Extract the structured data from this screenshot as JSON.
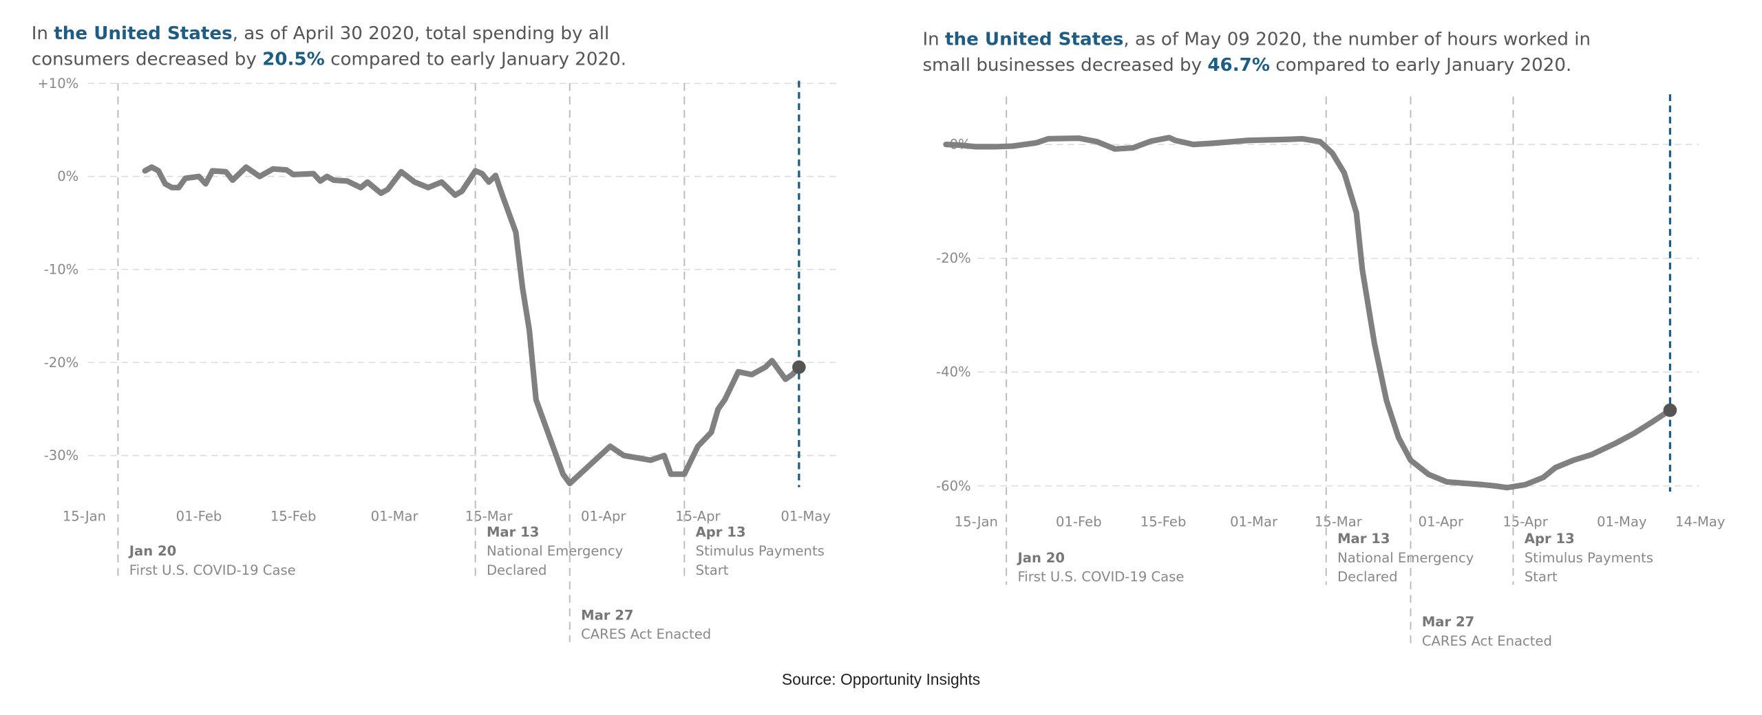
{
  "chart_data": [
    {
      "type": "line",
      "title": [
        {
          "text": "In "
        },
        {
          "text": "the United States",
          "highlight": true
        },
        {
          "text": ", as of April 30 2020, total spending by all consumers decreased by "
        },
        {
          "text": "20.5%",
          "highlight": true
        },
        {
          "text": " compared to early January 2020."
        }
      ],
      "x": [
        "24-Jan",
        "25-Jan",
        "26-Jan",
        "27-Jan",
        "28-Jan",
        "29-Jan",
        "30-Jan",
        "01-Feb",
        "02-Feb",
        "03-Feb",
        "05-Feb",
        "06-Feb",
        "08-Feb",
        "10-Feb",
        "12-Feb",
        "14-Feb",
        "15-Feb",
        "18-Feb",
        "19-Feb",
        "20-Feb",
        "21-Feb",
        "23-Feb",
        "25-Feb",
        "26-Feb",
        "28-Feb",
        "29-Feb",
        "02-Mar",
        "04-Mar",
        "06-Mar",
        "08-Mar",
        "10-Mar",
        "11-Mar",
        "13-Mar",
        "14-Mar",
        "15-Mar",
        "16-Mar",
        "17-Mar",
        "19-Mar",
        "20-Mar",
        "21-Mar",
        "22-Mar",
        "24-Mar",
        "26-Mar",
        "27-Mar",
        "30-Mar",
        "02-Apr",
        "04-Apr",
        "08-Apr",
        "10-Apr",
        "11-Apr",
        "13-Apr",
        "15-Apr",
        "17-Apr",
        "18-Apr",
        "19-Apr",
        "21-Apr",
        "23-Apr",
        "25-Apr",
        "26-Apr",
        "28-Apr",
        "29-Apr",
        "30-Apr"
      ],
      "series": [
        {
          "color": "#808080",
          "values": [
            0.6,
            1.0,
            0.6,
            -0.8,
            -1.2,
            -1.2,
            -0.2,
            0,
            -0.8,
            0.6,
            0.5,
            -0.4,
            1.0,
            0,
            0.8,
            0.7,
            0.2,
            0.3,
            -0.5,
            0,
            -0.4,
            -0.5,
            -1.2,
            -0.6,
            -1.8,
            -1.4,
            0.5,
            -0.6,
            -1.2,
            -0.6,
            -2.0,
            -1.6,
            0.6,
            0.3,
            -0.6,
            0.1,
            -2,
            -6,
            -12,
            -16.5,
            -24,
            -28,
            -32,
            -33,
            -31,
            -29,
            -30,
            -30.5,
            -30,
            -32,
            -32,
            -29,
            -27.5,
            -25,
            -24,
            -21,
            -21.3,
            -20.5,
            -19.8,
            -21.8,
            -21.3,
            -20.5
          ]
        }
      ],
      "xlim": [
        "13-Jan",
        "05-May"
      ],
      "xticks": [
        "15-Jan",
        "01-Feb",
        "15-Feb",
        "01-Mar",
        "15-Mar",
        "01-Apr",
        "15-Apr",
        "01-May"
      ],
      "ylim": [
        -34,
        11
      ],
      "yticks": [
        {
          "value": 10,
          "label": "+10%"
        },
        {
          "value": 0,
          "label": "0%"
        },
        {
          "value": -10,
          "label": "-10%"
        },
        {
          "value": -20,
          "label": "-20%"
        },
        {
          "value": -30,
          "label": "-30%"
        }
      ],
      "grid": true,
      "highlight_color": "#1d5c85",
      "annotations": [
        {
          "x": "20-Jan",
          "label": "Jan 20",
          "text": [
            "First U.S. COVID-19 Case"
          ]
        },
        {
          "x": "13-Mar",
          "label": "Mar 13",
          "text": [
            "National Emergency",
            "Declared"
          ]
        },
        {
          "x": "27-Mar",
          "label": "Mar 27",
          "text": [
            "CARES Act Enacted"
          ]
        },
        {
          "x": "13-Apr",
          "label": "Apr 13",
          "text": [
            "Stimulus Payments",
            "Start"
          ]
        }
      ]
    },
    {
      "type": "line",
      "title": [
        {
          "text": "In "
        },
        {
          "text": "the United States",
          "highlight": true
        },
        {
          "text": ", as of May 09 2020, the number of hours worked in small businesses decreased by "
        },
        {
          "text": "46.7%",
          "highlight": true
        },
        {
          "text": " compared to early January 2020."
        }
      ],
      "x": [
        "10-Jan",
        "12-Jan",
        "15-Jan",
        "18-Jan",
        "21-Jan",
        "25-Jan",
        "27-Jan",
        "01-Feb",
        "04-Feb",
        "07-Feb",
        "10-Feb",
        "13-Feb",
        "16-Feb",
        "17-Feb",
        "20-Feb",
        "23-Feb",
        "29-Feb",
        "07-Mar",
        "09-Mar",
        "12-Mar",
        "14-Mar",
        "16-Mar",
        "18-Mar",
        "19-Mar",
        "21-Mar",
        "23-Mar",
        "25-Mar",
        "27-Mar",
        "30-Mar",
        "02-Apr",
        "08-Apr",
        "10-Apr",
        "12-Apr",
        "15-Apr",
        "18-Apr",
        "20-Apr",
        "23-Apr",
        "26-Apr",
        "30-Apr",
        "03-May",
        "06-May",
        "09-May"
      ],
      "series": [
        {
          "color": "#808080",
          "values": [
            0,
            -0.1,
            -0.4,
            -0.4,
            -0.3,
            0.3,
            1,
            1.1,
            0.5,
            -0.8,
            -0.6,
            0.6,
            1.2,
            0.7,
            0,
            0.2,
            0.7,
            0.9,
            1.0,
            0.5,
            -1.5,
            -5,
            -12,
            -22,
            -35,
            -45,
            -51.5,
            -55.5,
            -58,
            -59.3,
            -59.8,
            -60,
            -60.3,
            -59.8,
            -58.5,
            -56.8,
            -55.5,
            -54.5,
            -52.5,
            -50.8,
            -48.8,
            -46.7
          ]
        }
      ],
      "xlim": [
        "05-Jan",
        "14-May"
      ],
      "xticks": [
        "15-Jan",
        "01-Feb",
        "15-Feb",
        "01-Mar",
        "15-Mar",
        "01-Apr",
        "15-Apr",
        "01-May",
        "14-May"
      ],
      "ylim": [
        -62,
        10
      ],
      "yticks": [
        {
          "value": 0,
          "label": "0%"
        },
        {
          "value": -20,
          "label": "-20%"
        },
        {
          "value": -40,
          "label": "-40%"
        },
        {
          "value": -60,
          "label": "-60%"
        }
      ],
      "grid": true,
      "highlight_color": "#1d5c85",
      "annotations": [
        {
          "x": "20-Jan",
          "label": "Jan 20",
          "text": [
            "First U.S. COVID-19 Case"
          ]
        },
        {
          "x": "13-Mar",
          "label": "Mar 13",
          "text": [
            "National Emergency",
            "Declared"
          ]
        },
        {
          "x": "27-Mar",
          "label": "Mar 27",
          "text": [
            "CARES Act Enacted"
          ]
        },
        {
          "x": "13-Apr",
          "label": "Apr 13",
          "text": [
            "Stimulus Payments",
            "Start"
          ]
        }
      ]
    }
  ],
  "source": "Source: Opportunity Insights"
}
